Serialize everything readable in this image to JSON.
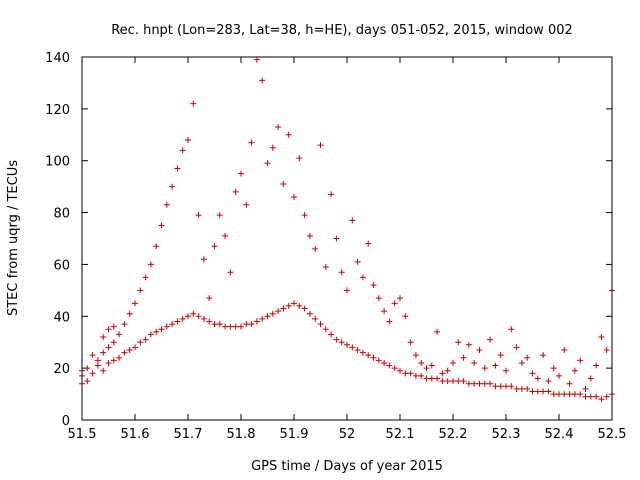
{
  "chart_data": {
    "type": "scatter",
    "title": "Rec. hnpt (Lon=283, Lat=38, h=HE), days 051-052, 2015, window 002",
    "xlabel": "GPS time / Days of year 2015",
    "ylabel": "STEC from uqrg / TECUs",
    "xlim": [
      51.5,
      52.5
    ],
    "ylim": [
      0,
      140
    ],
    "xticks": [
      51.5,
      51.6,
      51.7,
      51.8,
      51.9,
      52.0,
      52.1,
      52.2,
      52.3,
      52.4,
      52.5
    ],
    "xtick_labels": [
      "51.5",
      "51.6",
      "51.7",
      "51.8",
      "51.9",
      "52",
      "52.1",
      "52.2",
      "52.3",
      "52.4",
      "52.5"
    ],
    "yticks": [
      0,
      20,
      40,
      60,
      80,
      100,
      120,
      140
    ],
    "ytick_labels": [
      "0",
      "20",
      "40",
      "60",
      "80",
      "100",
      "120",
      "140"
    ],
    "marker": "plus",
    "color": "#cc0000",
    "series": [
      {
        "name": "STEC",
        "points": [
          [
            51.5,
            14
          ],
          [
            51.5,
            17
          ],
          [
            51.5,
            19
          ],
          [
            51.51,
            15
          ],
          [
            51.51,
            20
          ],
          [
            51.52,
            18
          ],
          [
            51.52,
            25
          ],
          [
            51.53,
            21
          ],
          [
            51.53,
            23
          ],
          [
            51.54,
            19
          ],
          [
            51.54,
            26
          ],
          [
            51.54,
            32
          ],
          [
            51.55,
            22
          ],
          [
            51.55,
            28
          ],
          [
            51.55,
            35
          ],
          [
            51.56,
            23
          ],
          [
            51.56,
            30
          ],
          [
            51.56,
            36
          ],
          [
            51.57,
            24
          ],
          [
            51.57,
            33
          ],
          [
            51.58,
            26
          ],
          [
            51.58,
            37
          ],
          [
            51.59,
            27
          ],
          [
            51.59,
            41
          ],
          [
            51.6,
            28
          ],
          [
            51.6,
            45
          ],
          [
            51.61,
            30
          ],
          [
            51.61,
            50
          ],
          [
            51.62,
            31
          ],
          [
            51.62,
            55
          ],
          [
            51.63,
            33
          ],
          [
            51.63,
            60
          ],
          [
            51.64,
            34
          ],
          [
            51.64,
            67
          ],
          [
            51.65,
            35
          ],
          [
            51.65,
            75
          ],
          [
            51.66,
            36
          ],
          [
            51.66,
            83
          ],
          [
            51.67,
            37
          ],
          [
            51.67,
            90
          ],
          [
            51.68,
            38
          ],
          [
            51.68,
            97
          ],
          [
            51.69,
            39
          ],
          [
            51.69,
            104
          ],
          [
            51.7,
            40
          ],
          [
            51.7,
            108
          ],
          [
            51.71,
            41
          ],
          [
            51.71,
            122
          ],
          [
            51.72,
            40
          ],
          [
            51.72,
            79
          ],
          [
            51.73,
            39
          ],
          [
            51.73,
            62
          ],
          [
            51.74,
            38
          ],
          [
            51.74,
            47
          ],
          [
            51.75,
            37
          ],
          [
            51.75,
            67
          ],
          [
            51.76,
            37
          ],
          [
            51.76,
            79
          ],
          [
            51.77,
            36
          ],
          [
            51.77,
            71
          ],
          [
            51.78,
            36
          ],
          [
            51.78,
            57
          ],
          [
            51.79,
            36
          ],
          [
            51.79,
            88
          ],
          [
            51.8,
            36
          ],
          [
            51.8,
            95
          ],
          [
            51.81,
            37
          ],
          [
            51.81,
            83
          ],
          [
            51.82,
            37
          ],
          [
            51.82,
            107
          ],
          [
            51.83,
            38
          ],
          [
            51.83,
            139
          ],
          [
            51.84,
            39
          ],
          [
            51.84,
            131
          ],
          [
            51.85,
            40
          ],
          [
            51.85,
            99
          ],
          [
            51.86,
            41
          ],
          [
            51.86,
            105
          ],
          [
            51.87,
            42
          ],
          [
            51.87,
            113
          ],
          [
            51.88,
            43
          ],
          [
            51.88,
            91
          ],
          [
            51.89,
            44
          ],
          [
            51.89,
            110
          ],
          [
            51.9,
            45
          ],
          [
            51.9,
            86
          ],
          [
            51.91,
            44
          ],
          [
            51.91,
            101
          ],
          [
            51.92,
            43
          ],
          [
            51.92,
            79
          ],
          [
            51.93,
            41
          ],
          [
            51.93,
            71
          ],
          [
            51.94,
            39
          ],
          [
            51.94,
            66
          ],
          [
            51.95,
            37
          ],
          [
            51.95,
            106
          ],
          [
            51.96,
            35
          ],
          [
            51.96,
            59
          ],
          [
            51.97,
            33
          ],
          [
            51.97,
            87
          ],
          [
            51.98,
            31
          ],
          [
            51.98,
            70
          ],
          [
            51.99,
            30
          ],
          [
            51.99,
            57
          ],
          [
            52.0,
            29
          ],
          [
            52.0,
            50
          ],
          [
            52.01,
            28
          ],
          [
            52.01,
            77
          ],
          [
            52.02,
            27
          ],
          [
            52.02,
            61
          ],
          [
            52.03,
            26
          ],
          [
            52.03,
            55
          ],
          [
            52.04,
            25
          ],
          [
            52.04,
            68
          ],
          [
            52.05,
            24
          ],
          [
            52.05,
            52
          ],
          [
            52.06,
            23
          ],
          [
            52.06,
            47
          ],
          [
            52.07,
            22
          ],
          [
            52.07,
            42
          ],
          [
            52.08,
            21
          ],
          [
            52.08,
            38
          ],
          [
            52.09,
            20
          ],
          [
            52.09,
            45
          ],
          [
            52.1,
            19
          ],
          [
            52.1,
            47
          ],
          [
            52.11,
            18
          ],
          [
            52.11,
            40
          ],
          [
            52.12,
            18
          ],
          [
            52.12,
            30
          ],
          [
            52.13,
            17
          ],
          [
            52.13,
            25
          ],
          [
            52.14,
            17
          ],
          [
            52.14,
            22
          ],
          [
            52.15,
            16
          ],
          [
            52.15,
            20
          ],
          [
            52.16,
            16
          ],
          [
            52.16,
            21
          ],
          [
            52.17,
            16
          ],
          [
            52.17,
            34
          ],
          [
            52.18,
            15
          ],
          [
            52.18,
            18
          ],
          [
            52.19,
            15
          ],
          [
            52.19,
            19
          ],
          [
            52.2,
            15
          ],
          [
            52.2,
            22
          ],
          [
            52.21,
            15
          ],
          [
            52.21,
            30
          ],
          [
            52.22,
            15
          ],
          [
            52.22,
            24
          ],
          [
            52.23,
            14
          ],
          [
            52.23,
            29
          ],
          [
            52.24,
            14
          ],
          [
            52.24,
            22
          ],
          [
            52.25,
            14
          ],
          [
            52.25,
            27
          ],
          [
            52.26,
            14
          ],
          [
            52.26,
            20
          ],
          [
            52.27,
            14
          ],
          [
            52.27,
            31
          ],
          [
            52.28,
            13
          ],
          [
            52.28,
            21
          ],
          [
            52.29,
            13
          ],
          [
            52.29,
            25
          ],
          [
            52.3,
            13
          ],
          [
            52.3,
            19
          ],
          [
            52.31,
            13
          ],
          [
            52.31,
            35
          ],
          [
            52.32,
            12
          ],
          [
            52.32,
            28
          ],
          [
            52.33,
            12
          ],
          [
            52.33,
            22
          ],
          [
            52.34,
            12
          ],
          [
            52.34,
            24
          ],
          [
            52.35,
            11
          ],
          [
            52.35,
            18
          ],
          [
            52.36,
            11
          ],
          [
            52.36,
            16
          ],
          [
            52.37,
            11
          ],
          [
            52.37,
            25
          ],
          [
            52.38,
            11
          ],
          [
            52.38,
            15
          ],
          [
            52.39,
            10
          ],
          [
            52.39,
            20
          ],
          [
            52.4,
            10
          ],
          [
            52.4,
            17
          ],
          [
            52.41,
            10
          ],
          [
            52.41,
            27
          ],
          [
            52.42,
            10
          ],
          [
            52.42,
            14
          ],
          [
            52.43,
            10
          ],
          [
            52.43,
            19
          ],
          [
            52.44,
            10
          ],
          [
            52.44,
            23
          ],
          [
            52.45,
            9
          ],
          [
            52.45,
            12
          ],
          [
            52.46,
            9
          ],
          [
            52.46,
            16
          ],
          [
            52.47,
            9
          ],
          [
            52.47,
            21
          ],
          [
            52.48,
            8
          ],
          [
            52.48,
            32
          ],
          [
            52.49,
            9
          ],
          [
            52.49,
            27
          ],
          [
            52.5,
            10
          ],
          [
            52.5,
            50
          ]
        ]
      }
    ]
  }
}
